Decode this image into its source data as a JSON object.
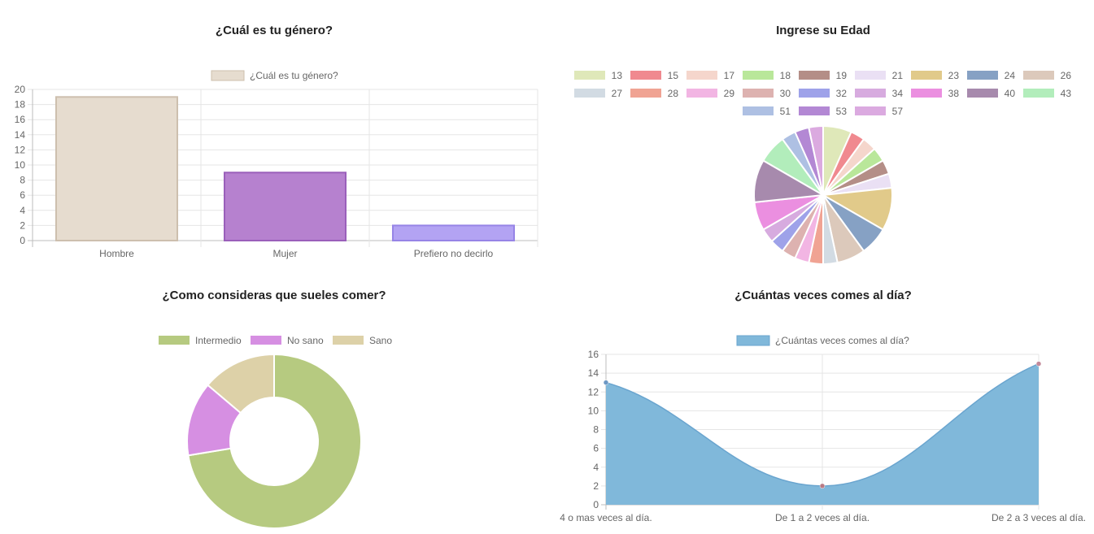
{
  "chart_data": [
    {
      "type": "bar",
      "title": "¿Cuál es tu género?",
      "categories": [
        "Hombre",
        "Mujer",
        "Prefiero no decirlo"
      ],
      "series": [
        {
          "name": "¿Cuál es tu género?",
          "values": [
            19,
            9,
            2
          ]
        }
      ],
      "bar_colors": [
        "#e6dccf",
        "#b681cf",
        "#b3a3f3"
      ],
      "bar_borders": [
        "#cdbfae",
        "#9a5fba",
        "#9684e6"
      ],
      "legend_color": "#e6dccf",
      "ylim": [
        0,
        20
      ],
      "yticks": [
        0,
        2,
        4,
        6,
        8,
        10,
        12,
        14,
        16,
        18,
        20
      ],
      "legend": "top",
      "grid": true
    },
    {
      "type": "pie",
      "title": "Ingrese su Edad",
      "labels": [
        "13",
        "15",
        "17",
        "18",
        "19",
        "21",
        "23",
        "24",
        "26",
        "27",
        "28",
        "29",
        "30",
        "32",
        "34",
        "38",
        "40",
        "43",
        "51",
        "53",
        "57"
      ],
      "values": [
        2,
        1,
        1,
        1,
        1,
        1,
        3,
        2,
        2,
        1,
        1,
        1,
        1,
        1,
        1,
        2,
        3,
        2,
        1,
        1,
        1
      ],
      "colors": [
        "#dfe8b9",
        "#f0898f",
        "#f5d6cc",
        "#b9e79a",
        "#b48e87",
        "#eae0f4",
        "#e1ca8a",
        "#86a1c4",
        "#dcc9bb",
        "#d2dbe3",
        "#f0a393",
        "#f2b5e3",
        "#ddb2b0",
        "#9ea2e9",
        "#d7abdf",
        "#eb8fe0",
        "#a78aad",
        "#b2edbb",
        "#aec0e3",
        "#b388d4",
        "#dbaae0"
      ],
      "legend": "top"
    },
    {
      "type": "pie",
      "title": "¿Como consideras que sueles comer?",
      "labels": [
        "Intermedio",
        "No sano",
        "Sano"
      ],
      "values": [
        21,
        4,
        4
      ],
      "colors": [
        "#b6ca80",
        "#d68fe2",
        "#ddd1a8"
      ],
      "doughnut": true,
      "legend": "top"
    },
    {
      "type": "area",
      "title": "¿Cuántas veces comes al día?",
      "categories": [
        "4 o mas veces al día.",
        "De 1 a 2 veces al día.",
        "De 2 a 3 veces al día."
      ],
      "series": [
        {
          "name": "¿Cuántas veces comes al día?",
          "values": [
            13,
            2,
            15
          ]
        }
      ],
      "point_colors": [
        "#6d98c4",
        "#b87a85",
        "#c38a9a"
      ],
      "fill_color": "#80b8da",
      "line_color": "#6aa5cf",
      "ylim": [
        0,
        16
      ],
      "yticks": [
        0,
        2,
        4,
        6,
        8,
        10,
        12,
        14,
        16
      ],
      "legend": "top",
      "grid": true
    }
  ]
}
